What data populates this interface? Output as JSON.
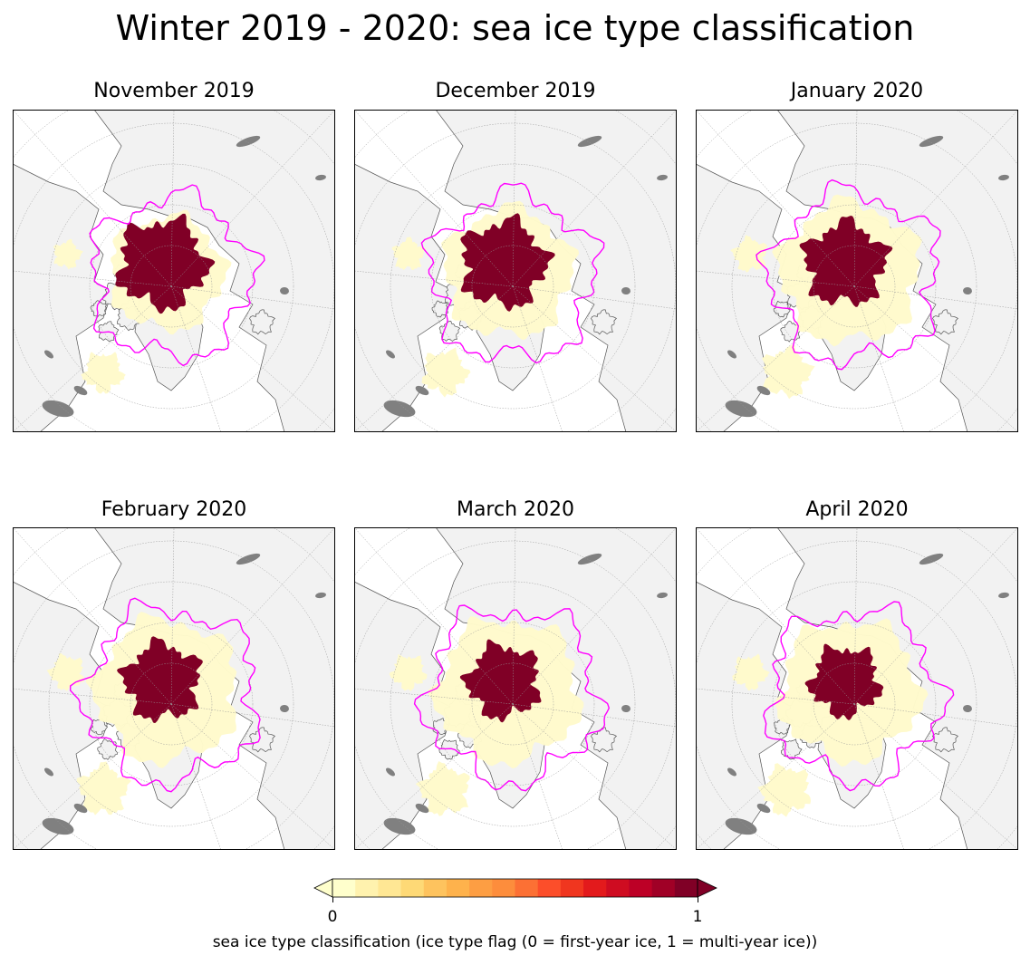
{
  "title": "Winter 2019 - 2020: sea ice type classification",
  "panels": [
    {
      "title": "November 2019",
      "myi_extent": 0.95,
      "fyi_extent": 0.8,
      "edge_reach": 0.7
    },
    {
      "title": "December 2019",
      "myi_extent": 0.92,
      "fyi_extent": 0.9,
      "edge_reach": 0.8
    },
    {
      "title": "January 2020",
      "myi_extent": 0.88,
      "fyi_extent": 0.98,
      "edge_reach": 0.9
    },
    {
      "title": "February 2020",
      "myi_extent": 0.82,
      "fyi_extent": 1.0,
      "edge_reach": 1.0
    },
    {
      "title": "March 2020",
      "myi_extent": 0.78,
      "fyi_extent": 1.0,
      "edge_reach": 1.0
    },
    {
      "title": "April 2020",
      "myi_extent": 0.74,
      "fyi_extent": 0.98,
      "edge_reach": 0.95
    }
  ],
  "colors": {
    "first_year_ice": "#fffacc",
    "multi_year_ice": "#800026",
    "ice_edge": "#ff00ff",
    "land": "#f2f2f2",
    "lakes": "#808080",
    "ocean": "#ffffff",
    "coast": "#555555"
  },
  "colorbar": {
    "min_label": "0",
    "max_label": "1",
    "label": "sea ice type classification (ice type flag (0 = first-year ice, 1 = multi-year ice))",
    "colors": [
      "#ffffcc",
      "#fff2ae",
      "#ffe794",
      "#fed976",
      "#fec35e",
      "#feb24c",
      "#fd9e43",
      "#fd8d3c",
      "#fc7034",
      "#fc4e2a",
      "#f0361f",
      "#e31a1c",
      "#cf0c21",
      "#bd0026",
      "#a00026",
      "#800026"
    ]
  }
}
